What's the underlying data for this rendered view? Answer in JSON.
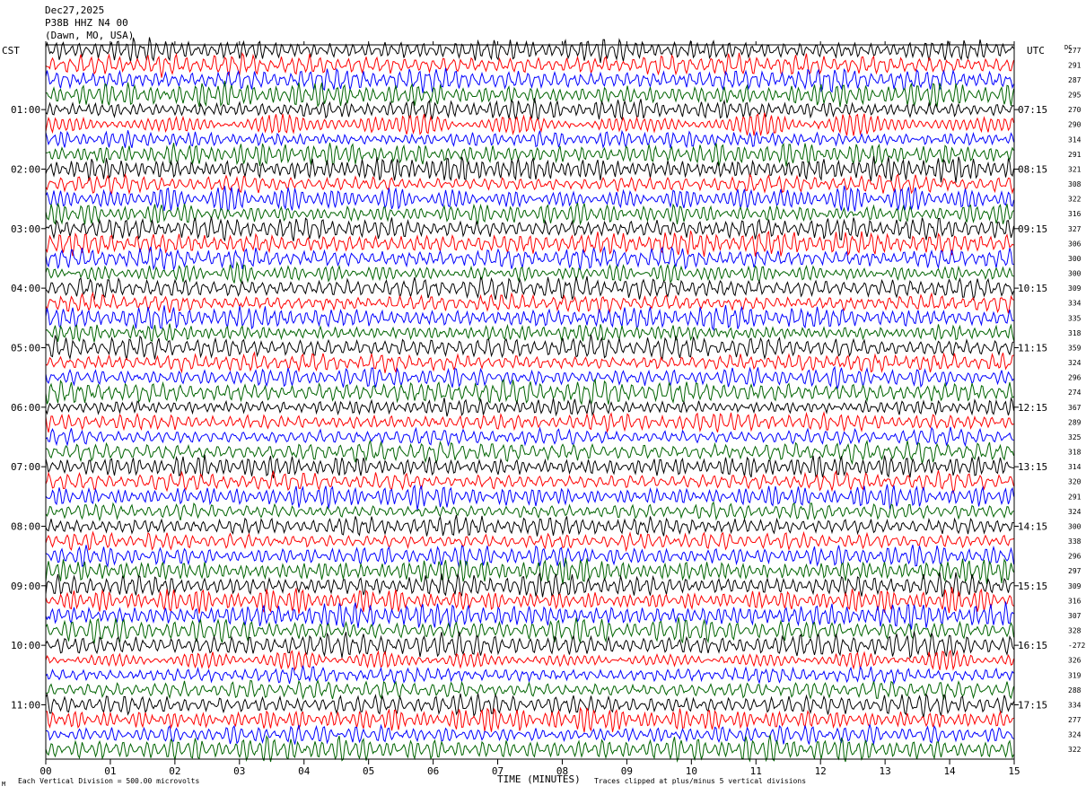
{
  "header": {
    "date": "Dec27,2025",
    "station": "P38B HHZ N4 00",
    "location": "(Dawn, MO, USA)"
  },
  "labels": {
    "left_tz": "CST",
    "right_tz": "UTC",
    "dc": "DC",
    "xlabel": "TIME (MINUTES)",
    "scale": "Each Vertical Division =  500.00 microvolts",
    "clip": "Traces clipped at plus/minus 5 vertical divisions",
    "logo": "M"
  },
  "colors": {
    "trace_cycle": [
      "#000000",
      "#ff0000",
      "#0000ff",
      "#006400"
    ],
    "axis": "#000000",
    "background": "#ffffff"
  },
  "chart_data": {
    "type": "line",
    "description_kind": "helicorder",
    "x_ticks": [
      "00",
      "01",
      "02",
      "03",
      "04",
      "05",
      "06",
      "07",
      "08",
      "09",
      "10",
      "11",
      "12",
      "13",
      "14",
      "15"
    ],
    "xlim": [
      0,
      15
    ],
    "minutes_per_line": 15,
    "line_count": 48,
    "left_hour_labels": [
      "01:00",
      "02:00",
      "03:00",
      "04:00",
      "05:00",
      "06:00",
      "07:00",
      "08:00",
      "09:00",
      "10:00",
      "11:00"
    ],
    "right_hour_labels": [
      "07:15",
      "08:15",
      "09:15",
      "10:15",
      "11:15",
      "12:15",
      "13:15",
      "14:15",
      "15:15",
      "16:15",
      "17:15"
    ],
    "dc_offsets": [
      "277",
      "291",
      "287",
      "295",
      "270",
      "290",
      "314",
      "291",
      "321",
      "308",
      "322",
      "316",
      "327",
      "306",
      "300",
      "300",
      "309",
      "334",
      "335",
      "318",
      "359",
      "324",
      "296",
      "274",
      "367",
      "289",
      "325",
      "318",
      "314",
      "320",
      "291",
      "324",
      "300",
      "338",
      "296",
      "297",
      "309",
      "316",
      "307",
      "328",
      "-272",
      "326",
      "319",
      "288",
      "334",
      "277",
      "324",
      "322"
    ]
  }
}
